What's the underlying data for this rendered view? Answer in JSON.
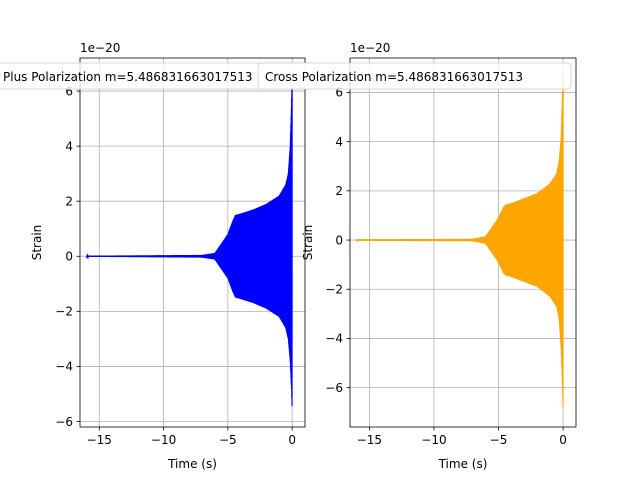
{
  "chart_data": [
    {
      "type": "line",
      "xlabel": "Time (s)",
      "ylabel": "Strain",
      "offset_text": "1e−20",
      "xlim": [
        -16.5,
        1.0
      ],
      "ylim": [
        -6.2,
        7.2
      ],
      "xticks": [
        -15,
        -10,
        -5,
        0
      ],
      "xtick_labels": [
        "−15",
        "−10",
        "−5",
        "0"
      ],
      "yticks": [
        -6,
        -4,
        -2,
        0,
        2,
        4,
        6
      ],
      "ytick_labels": [
        "−6",
        "−4",
        "−2",
        "0",
        "2",
        "4",
        "6"
      ],
      "grid": true,
      "legend_location": "top",
      "color": "#0000ff",
      "series": [
        {
          "name": "Plus Polarization m=5.486831663017513",
          "envelope_x": [
            -16.0,
            -7.0,
            -6.0,
            -5.0,
            -4.6,
            -4.4,
            -4.0,
            -3.0,
            -2.0,
            -1.0,
            -0.5,
            -0.3,
            -0.15,
            -0.05,
            0.0
          ],
          "envelope_upper": [
            0.02,
            0.05,
            0.12,
            0.8,
            1.3,
            1.5,
            1.55,
            1.7,
            1.9,
            2.2,
            2.6,
            3.0,
            4.0,
            5.5,
            6.7
          ],
          "envelope_lower": [
            -0.02,
            -0.05,
            -0.12,
            -0.8,
            -1.3,
            -1.5,
            -1.55,
            -1.7,
            -1.9,
            -2.2,
            -2.6,
            -3.0,
            -3.8,
            -4.8,
            -5.6
          ]
        }
      ]
    },
    {
      "type": "line",
      "xlabel": "Time (s)",
      "ylabel": "Strain",
      "offset_text": "1e−20",
      "xlim": [
        -16.5,
        1.0
      ],
      "ylim": [
        -7.6,
        7.4
      ],
      "xticks": [
        -15,
        -10,
        -5,
        0
      ],
      "xtick_labels": [
        "−15",
        "−10",
        "−5",
        "0"
      ],
      "yticks": [
        -6,
        -4,
        -2,
        0,
        2,
        4,
        6
      ],
      "ytick_labels": [
        "−6",
        "−4",
        "−2",
        "0",
        "2",
        "4",
        "6"
      ],
      "grid": true,
      "legend_location": "top",
      "color": "#ffa500",
      "series": [
        {
          "name": "Cross Polarization m=5.486831663017513",
          "envelope_x": [
            -16.0,
            -7.0,
            -6.0,
            -5.0,
            -4.6,
            -4.4,
            -4.0,
            -3.0,
            -2.0,
            -1.0,
            -0.5,
            -0.3,
            -0.15,
            -0.05,
            0.0
          ],
          "envelope_upper": [
            0.03,
            0.05,
            0.15,
            0.9,
            1.35,
            1.45,
            1.5,
            1.7,
            1.9,
            2.3,
            2.7,
            3.2,
            4.2,
            5.8,
            6.8
          ],
          "envelope_lower": [
            -0.03,
            -0.05,
            -0.15,
            -0.9,
            -1.35,
            -1.45,
            -1.5,
            -1.7,
            -1.9,
            -2.3,
            -2.7,
            -3.2,
            -4.4,
            -5.8,
            -7.0
          ]
        }
      ]
    }
  ]
}
